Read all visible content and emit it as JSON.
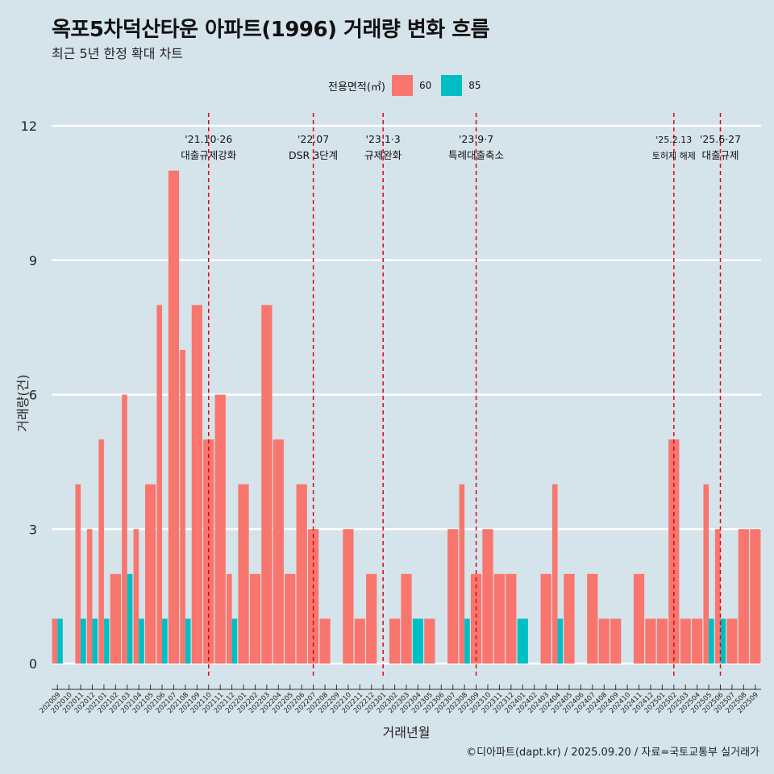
{
  "title": "옥포5차덕산타운 아파트(1996) 거래량 변화 흐름",
  "subtitle": "최근 5년 한정 확대 차트",
  "legend": {
    "title": "전용면적(㎡)",
    "items": [
      {
        "label": "60",
        "color": "#f8766d"
      },
      {
        "label": "85",
        "color": "#00bfc4"
      }
    ]
  },
  "caption": "©디아파트(dapt.kr) / 2025.09.20 / 자료=국토교통부 실거래가",
  "chart_data": {
    "type": "bar",
    "xlabel": "거래년월",
    "ylabel": "거래량(건)",
    "ylim": [
      0,
      12
    ],
    "yticks": [
      0,
      3,
      6,
      9,
      12
    ],
    "categories": [
      "202009",
      "202010",
      "202011",
      "202012",
      "202101",
      "202102",
      "202103",
      "202104",
      "202105",
      "202106",
      "202107",
      "202108",
      "202109",
      "202110",
      "202111",
      "202112",
      "202201",
      "202202",
      "202203",
      "202204",
      "202205",
      "202206",
      "202207",
      "202208",
      "202209",
      "202210",
      "202211",
      "202212",
      "202301",
      "202302",
      "202303",
      "202304",
      "202305",
      "202306",
      "202307",
      "202308",
      "202309",
      "202310",
      "202311",
      "202312",
      "202401",
      "202402",
      "202403",
      "202404",
      "202405",
      "202406",
      "202407",
      "202408",
      "202409",
      "202410",
      "202411",
      "202412",
      "202501",
      "202502",
      "202503",
      "202504",
      "202505",
      "202506",
      "202507",
      "202508",
      "202509"
    ],
    "series": [
      {
        "name": "60",
        "color": "#f8766d",
        "values": [
          1,
          0,
          4,
          3,
          5,
          2,
          6,
          3,
          4,
          8,
          11,
          7,
          8,
          5,
          6,
          2,
          4,
          2,
          8,
          5,
          2,
          4,
          3,
          1,
          0,
          3,
          1,
          2,
          0,
          1,
          2,
          0,
          1,
          0,
          3,
          4,
          2,
          3,
          2,
          2,
          0,
          0,
          2,
          4,
          2,
          0,
          2,
          1,
          1,
          0,
          2,
          1,
          1,
          5,
          1,
          1,
          4,
          3,
          1,
          3,
          3
        ]
      },
      {
        "name": "85",
        "color": "#00bfc4",
        "values": [
          1,
          0,
          1,
          1,
          1,
          0,
          2,
          1,
          0,
          1,
          0,
          1,
          0,
          0,
          0,
          1,
          0,
          0,
          0,
          0,
          0,
          0,
          0,
          0,
          0,
          0,
          0,
          0,
          0,
          0,
          0,
          1,
          0,
          0,
          0,
          1,
          0,
          0,
          0,
          0,
          1,
          0,
          0,
          1,
          0,
          0,
          0,
          0,
          0,
          0,
          0,
          0,
          0,
          0,
          0,
          0,
          1,
          1,
          0,
          0,
          0
        ]
      }
    ],
    "events": [
      {
        "category": "202110",
        "date": "'21.10·26",
        "label": "대출규제강화"
      },
      {
        "category": "202207",
        "date": "'22.07",
        "label": "DSR 3단계"
      },
      {
        "category": "202301",
        "date": "'23.1·3",
        "label": "규제완화"
      },
      {
        "category": "202309",
        "date": "'23.9·7",
        "label": "특례대출축소"
      },
      {
        "category": "202502",
        "date": "'25.2.13",
        "label": "토허제 해제"
      },
      {
        "category": "202506",
        "date": "'25.6·27",
        "label": "대출규제"
      }
    ]
  }
}
